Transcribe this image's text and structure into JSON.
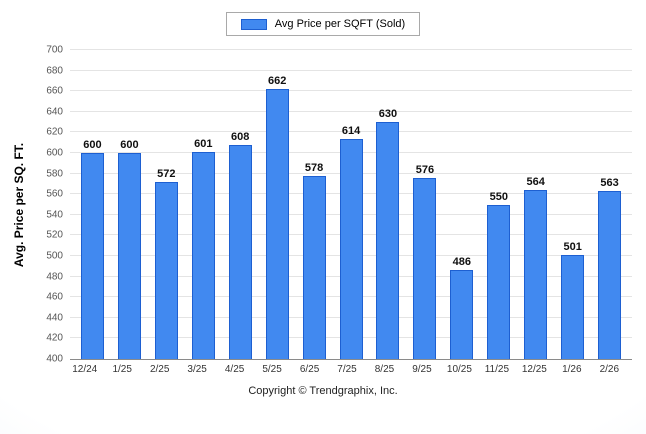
{
  "legend": {
    "label": "Avg Price per SQFT (Sold)"
  },
  "footer": {
    "text": "Copyright © Trendgraphix, Inc."
  },
  "chart_data": {
    "type": "bar",
    "title": "",
    "xlabel": "",
    "ylabel": "Avg. Price per SQ. FT.",
    "categories": [
      "12/24",
      "1/25",
      "2/25",
      "3/25",
      "4/25",
      "5/25",
      "6/25",
      "7/25",
      "8/25",
      "9/25",
      "10/25",
      "11/25",
      "12/25",
      "1/26",
      "2/26"
    ],
    "values": [
      600,
      600,
      572,
      601,
      608,
      662,
      578,
      614,
      630,
      576,
      486,
      550,
      564,
      501,
      563
    ],
    "ylim": [
      400,
      700
    ],
    "ytick_step": 20,
    "grid": true,
    "legend_position": "top",
    "bar_color": "#4189f0",
    "bar_border_color": "#1d5fd1",
    "value_labels": true
  }
}
